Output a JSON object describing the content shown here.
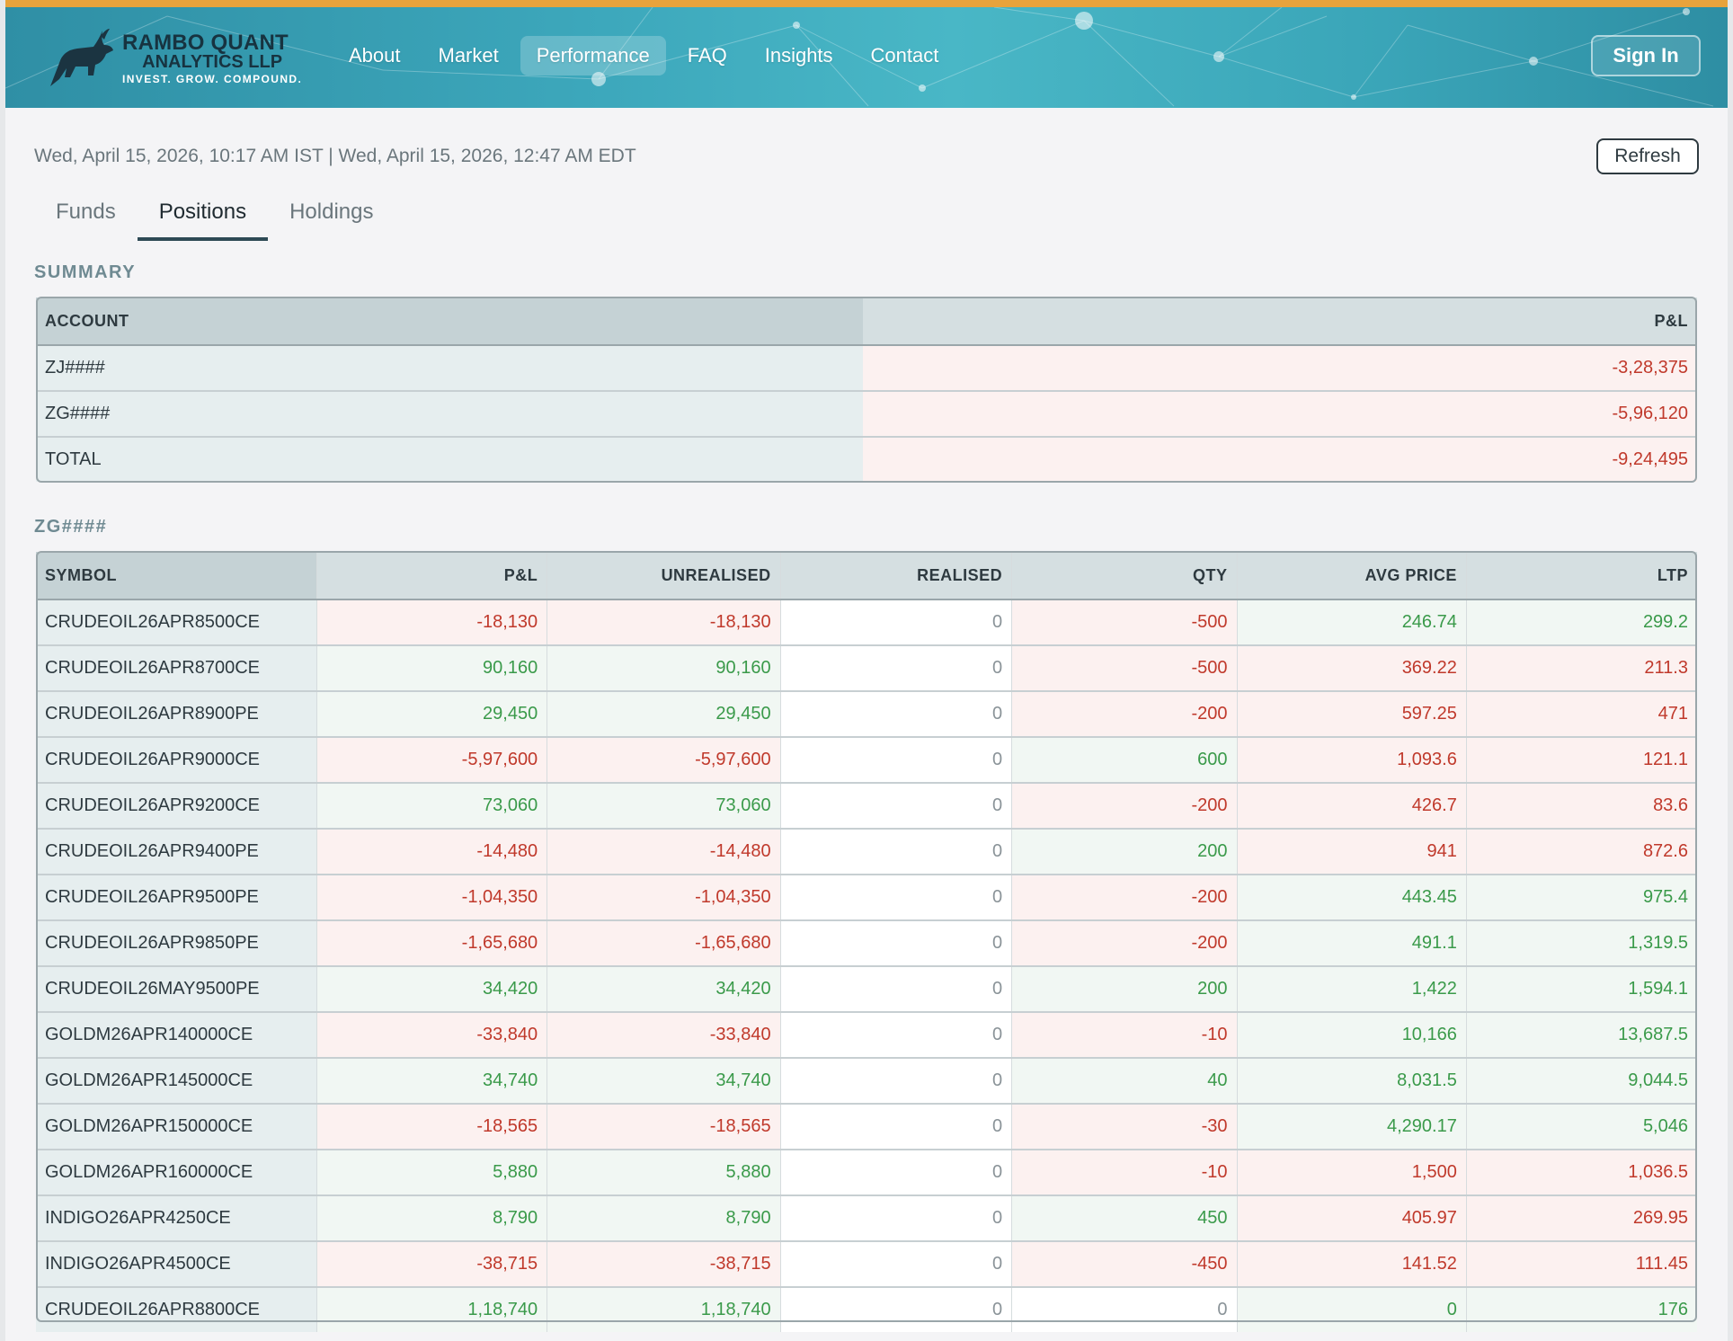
{
  "header": {
    "logo": {
      "line1": "RAMBO QUANT",
      "line2": "ANALYTICS LLP",
      "tagline": "INVEST. GROW. COMPOUND."
    },
    "nav": [
      {
        "label": "About"
      },
      {
        "label": "Market"
      },
      {
        "label": "Performance",
        "active": true
      },
      {
        "label": "FAQ"
      },
      {
        "label": "Insights"
      },
      {
        "label": "Contact"
      }
    ],
    "signin_label": "Sign In"
  },
  "datetime": "Wed, April 15, 2026, 10:17 AM IST | Wed, April 15, 2026, 12:47 AM EDT",
  "refresh_label": "Refresh",
  "tabs": [
    {
      "label": "Funds"
    },
    {
      "label": "Positions",
      "active": true
    },
    {
      "label": "Holdings"
    }
  ],
  "summary": {
    "title": "SUMMARY",
    "headers": {
      "account": "ACCOUNT",
      "pnl": "P&L"
    },
    "rows": [
      {
        "account": "ZJ####",
        "pnl": "-3,28,375"
      },
      {
        "account": "ZG####",
        "pnl": "-5,96,120"
      },
      {
        "account": "TOTAL",
        "pnl": "-9,24,495"
      }
    ]
  },
  "positions": {
    "title": "ZG####",
    "headers": [
      "SYMBOL",
      "P&L",
      "UNREALISED",
      "REALISED",
      "QTY",
      "AVG PRICE",
      "LTP"
    ],
    "rows": [
      [
        "CRUDEOIL26APR8500CE",
        "-18,130",
        "-18,130",
        "0",
        "-500",
        "246.74",
        "299.2"
      ],
      [
        "CRUDEOIL26APR8700CE",
        "90,160",
        "90,160",
        "0",
        "-500",
        "369.22",
        "211.3"
      ],
      [
        "CRUDEOIL26APR8900PE",
        "29,450",
        "29,450",
        "0",
        "-200",
        "597.25",
        "471"
      ],
      [
        "CRUDEOIL26APR9000CE",
        "-5,97,600",
        "-5,97,600",
        "0",
        "600",
        "1,093.6",
        "121.1"
      ],
      [
        "CRUDEOIL26APR9200CE",
        "73,060",
        "73,060",
        "0",
        "-200",
        "426.7",
        "83.6"
      ],
      [
        "CRUDEOIL26APR9400PE",
        "-14,480",
        "-14,480",
        "0",
        "200",
        "941",
        "872.6"
      ],
      [
        "CRUDEOIL26APR9500PE",
        "-1,04,350",
        "-1,04,350",
        "0",
        "-200",
        "443.45",
        "975.4"
      ],
      [
        "CRUDEOIL26APR9850PE",
        "-1,65,680",
        "-1,65,680",
        "0",
        "-200",
        "491.1",
        "1,319.5"
      ],
      [
        "CRUDEOIL26MAY9500PE",
        "34,420",
        "34,420",
        "0",
        "200",
        "1,422",
        "1,594.1"
      ],
      [
        "GOLDM26APR140000CE",
        "-33,840",
        "-33,840",
        "0",
        "-10",
        "10,166",
        "13,687.5"
      ],
      [
        "GOLDM26APR145000CE",
        "34,740",
        "34,740",
        "0",
        "40",
        "8,031.5",
        "9,044.5"
      ],
      [
        "GOLDM26APR150000CE",
        "-18,565",
        "-18,565",
        "0",
        "-30",
        "4,290.17",
        "5,046"
      ],
      [
        "GOLDM26APR160000CE",
        "5,880",
        "5,880",
        "0",
        "-10",
        "1,500",
        "1,036.5"
      ],
      [
        "INDIGO26APR4250CE",
        "8,790",
        "8,790",
        "0",
        "450",
        "405.97",
        "269.95"
      ],
      [
        "INDIGO26APR4500CE",
        "-38,715",
        "-38,715",
        "0",
        "-450",
        "141.52",
        "111.45"
      ],
      [
        "CRUDEOIL26APR8800CE",
        "1,18,740",
        "1,18,740",
        "0",
        "0",
        "0",
        "176"
      ]
    ],
    "tones": [
      [
        "neg",
        "neg",
        "zero",
        "neg",
        "pos",
        "pos"
      ],
      [
        "pos",
        "pos",
        "zero",
        "neg",
        "neg",
        "neg"
      ],
      [
        "pos",
        "pos",
        "zero",
        "neg",
        "neg",
        "neg"
      ],
      [
        "neg",
        "neg",
        "zero",
        "pos",
        "neg",
        "neg"
      ],
      [
        "pos",
        "pos",
        "zero",
        "neg",
        "neg",
        "neg"
      ],
      [
        "neg",
        "neg",
        "zero",
        "pos",
        "neg",
        "neg"
      ],
      [
        "neg",
        "neg",
        "zero",
        "neg",
        "pos",
        "pos"
      ],
      [
        "neg",
        "neg",
        "zero",
        "neg",
        "pos",
        "pos"
      ],
      [
        "pos",
        "pos",
        "zero",
        "pos",
        "pos",
        "pos"
      ],
      [
        "neg",
        "neg",
        "zero",
        "neg",
        "pos",
        "pos"
      ],
      [
        "pos",
        "pos",
        "zero",
        "pos",
        "pos",
        "pos"
      ],
      [
        "neg",
        "neg",
        "zero",
        "neg",
        "pos",
        "pos"
      ],
      [
        "pos",
        "pos",
        "zero",
        "neg",
        "neg",
        "neg"
      ],
      [
        "pos",
        "pos",
        "zero",
        "pos",
        "neg",
        "neg"
      ],
      [
        "neg",
        "neg",
        "zero",
        "neg",
        "neg",
        "neg"
      ],
      [
        "pos",
        "pos",
        "zero",
        "zero",
        "pos",
        "pos"
      ]
    ]
  },
  "colors": {
    "accent_bar": "#e8a33c",
    "header_teal": "#3da8bc",
    "negative": "#c0392b",
    "positive": "#3a9a4a"
  }
}
